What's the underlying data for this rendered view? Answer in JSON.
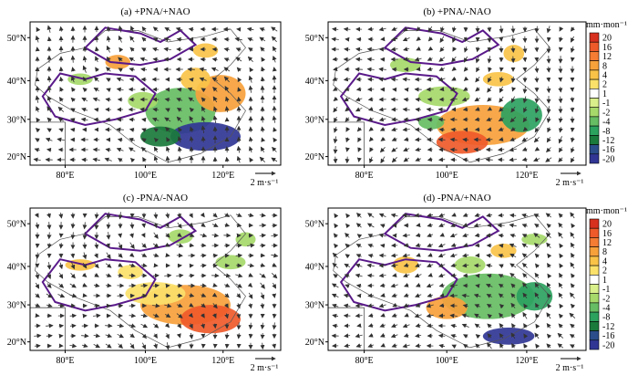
{
  "chart_data": [
    {
      "type": "map",
      "title": "(a) +PNA/+NAO",
      "lon_ticks": [
        "80°E",
        "100°E",
        "120°E"
      ],
      "lat_ticks": [
        "50°N",
        "40°N",
        "30°N",
        "20°N"
      ],
      "ref_vector": "2 m·s-1"
    },
    {
      "type": "map",
      "title": "(b) +PNA/-NAO",
      "lon_ticks": [
        "80°E",
        "100°E",
        "120°E"
      ],
      "lat_ticks": [
        "50°N",
        "40°N",
        "30°N",
        "20°N"
      ],
      "ref_vector": "2 m·s-1"
    },
    {
      "type": "map",
      "title": "(c) -PNA/-NAO",
      "lon_ticks": [
        "80°E",
        "100°E",
        "120°E"
      ],
      "lat_ticks": [
        "50°N",
        "40°N",
        "30°N",
        "20°N"
      ],
      "ref_vector": "2 m·s-1"
    },
    {
      "type": "map",
      "title": "(d) -PNA/+NAO",
      "lon_ticks": [
        "80°E",
        "100°E",
        "120°E"
      ],
      "lat_ticks": [
        "50°N",
        "40°N",
        "30°N",
        "20°N"
      ],
      "ref_vector": "2 m·s-1"
    }
  ],
  "colorbar": {
    "unit": "mm·mon-1",
    "labels": [
      "20",
      "16",
      "12",
      "8",
      "4",
      "2",
      "1",
      "-1",
      "-2",
      "-4",
      "-8",
      "-12",
      "-16",
      "-20"
    ],
    "colors": [
      "#d7301f",
      "#ef5a2a",
      "#f47c33",
      "#f7a13b",
      "#f9c348",
      "#fbe16a",
      "#ffffff",
      "#d9ef8b",
      "#a6d96a",
      "#66bd63",
      "#2ca25f",
      "#1a7a3c",
      "#2b4d8a",
      "#313695"
    ]
  }
}
